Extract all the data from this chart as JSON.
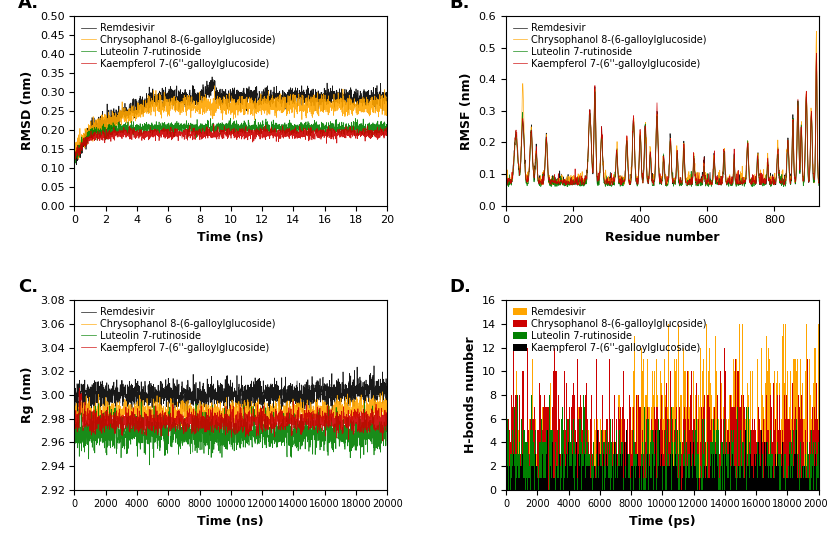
{
  "legend_labels": [
    "Remdesivir",
    "Chrysophanol 8-(6-galloylglucoside)",
    "Luteolin 7-rutinoside",
    "Kaempferol 7-(6’’-galloylglucoside)"
  ],
  "legend_labels_raw": [
    "Remdesivir",
    "Chrysophanol 8-(6-galloylglucoside)",
    "Luteolin 7-rutinoside",
    "Kaempferol 7-(6''-galloylglucoside)"
  ],
  "colors": [
    "#000000",
    "#FFA500",
    "#008000",
    "#CC0000"
  ],
  "panel_labels": [
    "A.",
    "B.",
    "C.",
    "D."
  ],
  "rmsd": {
    "xlabel": "Time (ns)",
    "ylabel": "RMSD (nm)",
    "xmin": 0,
    "xmax": 20,
    "ymin": 0,
    "ymax": 0.5,
    "yticks": [
      0,
      0.05,
      0.1,
      0.15,
      0.2,
      0.25,
      0.3,
      0.35,
      0.4,
      0.45,
      0.5
    ],
    "xticks": [
      0,
      2,
      4,
      6,
      8,
      10,
      12,
      14,
      16,
      18,
      20
    ],
    "n_points": 2000
  },
  "rmsf": {
    "xlabel": "Residue number",
    "ylabel": "RMSF (nm)",
    "xmin": 0,
    "xmax": 932,
    "ymin": 0,
    "ymax": 0.6,
    "yticks": [
      0,
      0.1,
      0.2,
      0.3,
      0.4,
      0.5,
      0.6
    ],
    "xticks": [
      0,
      200,
      400,
      600,
      800
    ],
    "n_residues": 932
  },
  "rg": {
    "xlabel": "Time (ns)",
    "ylabel": "Rg (nm)",
    "xmin": 0,
    "xmax": 20000,
    "ymin": 2.92,
    "ymax": 3.08,
    "yticks": [
      2.92,
      2.94,
      2.96,
      2.98,
      3.0,
      3.02,
      3.04,
      3.06,
      3.08
    ],
    "xticks": [
      0,
      2000,
      4000,
      6000,
      8000,
      10000,
      12000,
      14000,
      16000,
      18000,
      20000
    ],
    "n_points": 2000,
    "black_mean": 3.0,
    "orange_mean": 2.985,
    "green_mean": 2.968,
    "red_mean": 2.978
  },
  "hbonds": {
    "xlabel": "Time (ps)",
    "ylabel": "H-bonds number",
    "xmin": 0,
    "xmax": 20000,
    "ymin": 0,
    "ymax": 16,
    "yticks": [
      0,
      2,
      4,
      6,
      8,
      10,
      12,
      14,
      16
    ],
    "xticks": [
      0,
      2000,
      4000,
      6000,
      8000,
      10000,
      12000,
      14000,
      16000,
      18000,
      20000
    ],
    "n_points": 2000,
    "black_lambda": 1.5,
    "green_lambda_early": 3.0,
    "green_lambda_late": 2.5,
    "red_lambda_early": 5.5,
    "red_lambda_late": 5.0,
    "orange_lambda_early": 3.0,
    "orange_lambda_late": 7.0
  },
  "background_color": "#ffffff",
  "panel_label_fontsize": 13,
  "axis_label_fontsize": 9,
  "tick_fontsize": 8,
  "legend_fontsize": 7,
  "line_width": 0.5
}
